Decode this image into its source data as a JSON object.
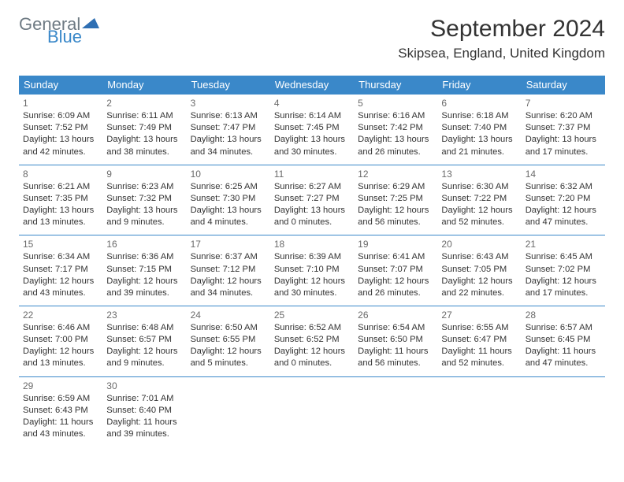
{
  "logo": {
    "word1": "General",
    "word2": "Blue",
    "text_color1": "#6f7b84",
    "text_color2": "#3a88c9",
    "icon_color": "#2f6fb3"
  },
  "title": "September 2024",
  "location": "Skipsea, England, United Kingdom",
  "header_bg": "#3a88c9",
  "border_color": "#3a88c9",
  "dow": [
    "Sunday",
    "Monday",
    "Tuesday",
    "Wednesday",
    "Thursday",
    "Friday",
    "Saturday"
  ],
  "days": [
    {
      "n": "1",
      "sr": "Sunrise: 6:09 AM",
      "ss": "Sunset: 7:52 PM",
      "dl1": "Daylight: 13 hours",
      "dl2": "and 42 minutes."
    },
    {
      "n": "2",
      "sr": "Sunrise: 6:11 AM",
      "ss": "Sunset: 7:49 PM",
      "dl1": "Daylight: 13 hours",
      "dl2": "and 38 minutes."
    },
    {
      "n": "3",
      "sr": "Sunrise: 6:13 AM",
      "ss": "Sunset: 7:47 PM",
      "dl1": "Daylight: 13 hours",
      "dl2": "and 34 minutes."
    },
    {
      "n": "4",
      "sr": "Sunrise: 6:14 AM",
      "ss": "Sunset: 7:45 PM",
      "dl1": "Daylight: 13 hours",
      "dl2": "and 30 minutes."
    },
    {
      "n": "5",
      "sr": "Sunrise: 6:16 AM",
      "ss": "Sunset: 7:42 PM",
      "dl1": "Daylight: 13 hours",
      "dl2": "and 26 minutes."
    },
    {
      "n": "6",
      "sr": "Sunrise: 6:18 AM",
      "ss": "Sunset: 7:40 PM",
      "dl1": "Daylight: 13 hours",
      "dl2": "and 21 minutes."
    },
    {
      "n": "7",
      "sr": "Sunrise: 6:20 AM",
      "ss": "Sunset: 7:37 PM",
      "dl1": "Daylight: 13 hours",
      "dl2": "and 17 minutes."
    },
    {
      "n": "8",
      "sr": "Sunrise: 6:21 AM",
      "ss": "Sunset: 7:35 PM",
      "dl1": "Daylight: 13 hours",
      "dl2": "and 13 minutes."
    },
    {
      "n": "9",
      "sr": "Sunrise: 6:23 AM",
      "ss": "Sunset: 7:32 PM",
      "dl1": "Daylight: 13 hours",
      "dl2": "and 9 minutes."
    },
    {
      "n": "10",
      "sr": "Sunrise: 6:25 AM",
      "ss": "Sunset: 7:30 PM",
      "dl1": "Daylight: 13 hours",
      "dl2": "and 4 minutes."
    },
    {
      "n": "11",
      "sr": "Sunrise: 6:27 AM",
      "ss": "Sunset: 7:27 PM",
      "dl1": "Daylight: 13 hours",
      "dl2": "and 0 minutes."
    },
    {
      "n": "12",
      "sr": "Sunrise: 6:29 AM",
      "ss": "Sunset: 7:25 PM",
      "dl1": "Daylight: 12 hours",
      "dl2": "and 56 minutes."
    },
    {
      "n": "13",
      "sr": "Sunrise: 6:30 AM",
      "ss": "Sunset: 7:22 PM",
      "dl1": "Daylight: 12 hours",
      "dl2": "and 52 minutes."
    },
    {
      "n": "14",
      "sr": "Sunrise: 6:32 AM",
      "ss": "Sunset: 7:20 PM",
      "dl1": "Daylight: 12 hours",
      "dl2": "and 47 minutes."
    },
    {
      "n": "15",
      "sr": "Sunrise: 6:34 AM",
      "ss": "Sunset: 7:17 PM",
      "dl1": "Daylight: 12 hours",
      "dl2": "and 43 minutes."
    },
    {
      "n": "16",
      "sr": "Sunrise: 6:36 AM",
      "ss": "Sunset: 7:15 PM",
      "dl1": "Daylight: 12 hours",
      "dl2": "and 39 minutes."
    },
    {
      "n": "17",
      "sr": "Sunrise: 6:37 AM",
      "ss": "Sunset: 7:12 PM",
      "dl1": "Daylight: 12 hours",
      "dl2": "and 34 minutes."
    },
    {
      "n": "18",
      "sr": "Sunrise: 6:39 AM",
      "ss": "Sunset: 7:10 PM",
      "dl1": "Daylight: 12 hours",
      "dl2": "and 30 minutes."
    },
    {
      "n": "19",
      "sr": "Sunrise: 6:41 AM",
      "ss": "Sunset: 7:07 PM",
      "dl1": "Daylight: 12 hours",
      "dl2": "and 26 minutes."
    },
    {
      "n": "20",
      "sr": "Sunrise: 6:43 AM",
      "ss": "Sunset: 7:05 PM",
      "dl1": "Daylight: 12 hours",
      "dl2": "and 22 minutes."
    },
    {
      "n": "21",
      "sr": "Sunrise: 6:45 AM",
      "ss": "Sunset: 7:02 PM",
      "dl1": "Daylight: 12 hours",
      "dl2": "and 17 minutes."
    },
    {
      "n": "22",
      "sr": "Sunrise: 6:46 AM",
      "ss": "Sunset: 7:00 PM",
      "dl1": "Daylight: 12 hours",
      "dl2": "and 13 minutes."
    },
    {
      "n": "23",
      "sr": "Sunrise: 6:48 AM",
      "ss": "Sunset: 6:57 PM",
      "dl1": "Daylight: 12 hours",
      "dl2": "and 9 minutes."
    },
    {
      "n": "24",
      "sr": "Sunrise: 6:50 AM",
      "ss": "Sunset: 6:55 PM",
      "dl1": "Daylight: 12 hours",
      "dl2": "and 5 minutes."
    },
    {
      "n": "25",
      "sr": "Sunrise: 6:52 AM",
      "ss": "Sunset: 6:52 PM",
      "dl1": "Daylight: 12 hours",
      "dl2": "and 0 minutes."
    },
    {
      "n": "26",
      "sr": "Sunrise: 6:54 AM",
      "ss": "Sunset: 6:50 PM",
      "dl1": "Daylight: 11 hours",
      "dl2": "and 56 minutes."
    },
    {
      "n": "27",
      "sr": "Sunrise: 6:55 AM",
      "ss": "Sunset: 6:47 PM",
      "dl1": "Daylight: 11 hours",
      "dl2": "and 52 minutes."
    },
    {
      "n": "28",
      "sr": "Sunrise: 6:57 AM",
      "ss": "Sunset: 6:45 PM",
      "dl1": "Daylight: 11 hours",
      "dl2": "and 47 minutes."
    },
    {
      "n": "29",
      "sr": "Sunrise: 6:59 AM",
      "ss": "Sunset: 6:43 PM",
      "dl1": "Daylight: 11 hours",
      "dl2": "and 43 minutes."
    },
    {
      "n": "30",
      "sr": "Sunrise: 7:01 AM",
      "ss": "Sunset: 6:40 PM",
      "dl1": "Daylight: 11 hours",
      "dl2": "and 39 minutes."
    }
  ]
}
